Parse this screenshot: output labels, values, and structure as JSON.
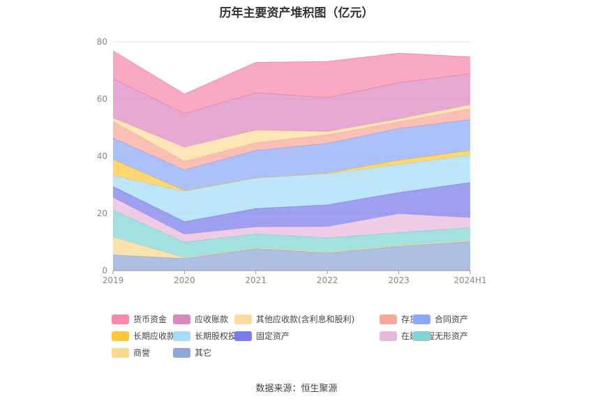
{
  "chart_data": {
    "type": "area",
    "stacked": true,
    "title": "历年主要资产堆积图（亿元）",
    "categories": [
      "2019",
      "2020",
      "2021",
      "2022",
      "2023",
      "2024H1"
    ],
    "ylim": [
      0,
      80
    ],
    "yticks": [
      0,
      20,
      40,
      60,
      80
    ],
    "grid": true,
    "legend_position": "bottom",
    "series": [
      {
        "name": "其它",
        "color": "#8EA8D8",
        "values": [
          5.5,
          4.2,
          7.7,
          6.2,
          8.5,
          10.2
        ]
      },
      {
        "name": "商誉",
        "color": "#FAD890",
        "values": [
          6.2,
          0.3,
          0.3,
          0.3,
          0.3,
          0.3
        ]
      },
      {
        "name": "无形资产",
        "color": "#80D4D4",
        "values": [
          9.4,
          5.4,
          4.8,
          4.9,
          4.5,
          4.5
        ]
      },
      {
        "name": "在建工程",
        "color": "#E8B8DC",
        "values": [
          4.5,
          2.8,
          2.5,
          4.0,
          6.6,
          3.5
        ]
      },
      {
        "name": "固定资产",
        "color": "#7B7CEC",
        "values": [
          3.8,
          4.4,
          6.4,
          7.6,
          7.4,
          12.3
        ]
      },
      {
        "name": "长期股权投资",
        "color": "#A4DCF8",
        "values": [
          3.8,
          10.6,
          10.7,
          10.8,
          9.8,
          9.5
        ]
      },
      {
        "name": "长期应收款",
        "color": "#FFC83C",
        "values": [
          5.7,
          0.3,
          0.0,
          0.3,
          1.5,
          1.7
        ]
      },
      {
        "name": "合同资产",
        "color": "#8CA8F8",
        "values": [
          7.5,
          7.2,
          9.6,
          10.4,
          11.1,
          10.8
        ]
      },
      {
        "name": "存货",
        "color": "#F8A898",
        "values": [
          5.8,
          3.0,
          2.7,
          3.0,
          2.3,
          3.8
        ]
      },
      {
        "name": "其他应收款(含利息和股利)",
        "color": "#FCDC9C",
        "values": [
          1.2,
          4.9,
          4.4,
          1.1,
          1.0,
          1.4
        ]
      },
      {
        "name": "应收账款",
        "color": "#DC88C0",
        "values": [
          13.7,
          11.8,
          13.1,
          11.9,
          12.7,
          10.8
        ]
      },
      {
        "name": "货币资金",
        "color": "#F888AC",
        "values": [
          9.7,
          6.8,
          10.6,
          12.6,
          10.3,
          5.9
        ]
      }
    ]
  },
  "legend_order": [
    "货币资金",
    "应收账款",
    "其他应收款(含利息和股利)",
    "存货",
    "合同资产",
    "长期应收款",
    "长期股权投资",
    "固定资产",
    "在建工程",
    "无形资产",
    "商誉",
    "其它"
  ],
  "source": "数据来源：恒生聚源"
}
